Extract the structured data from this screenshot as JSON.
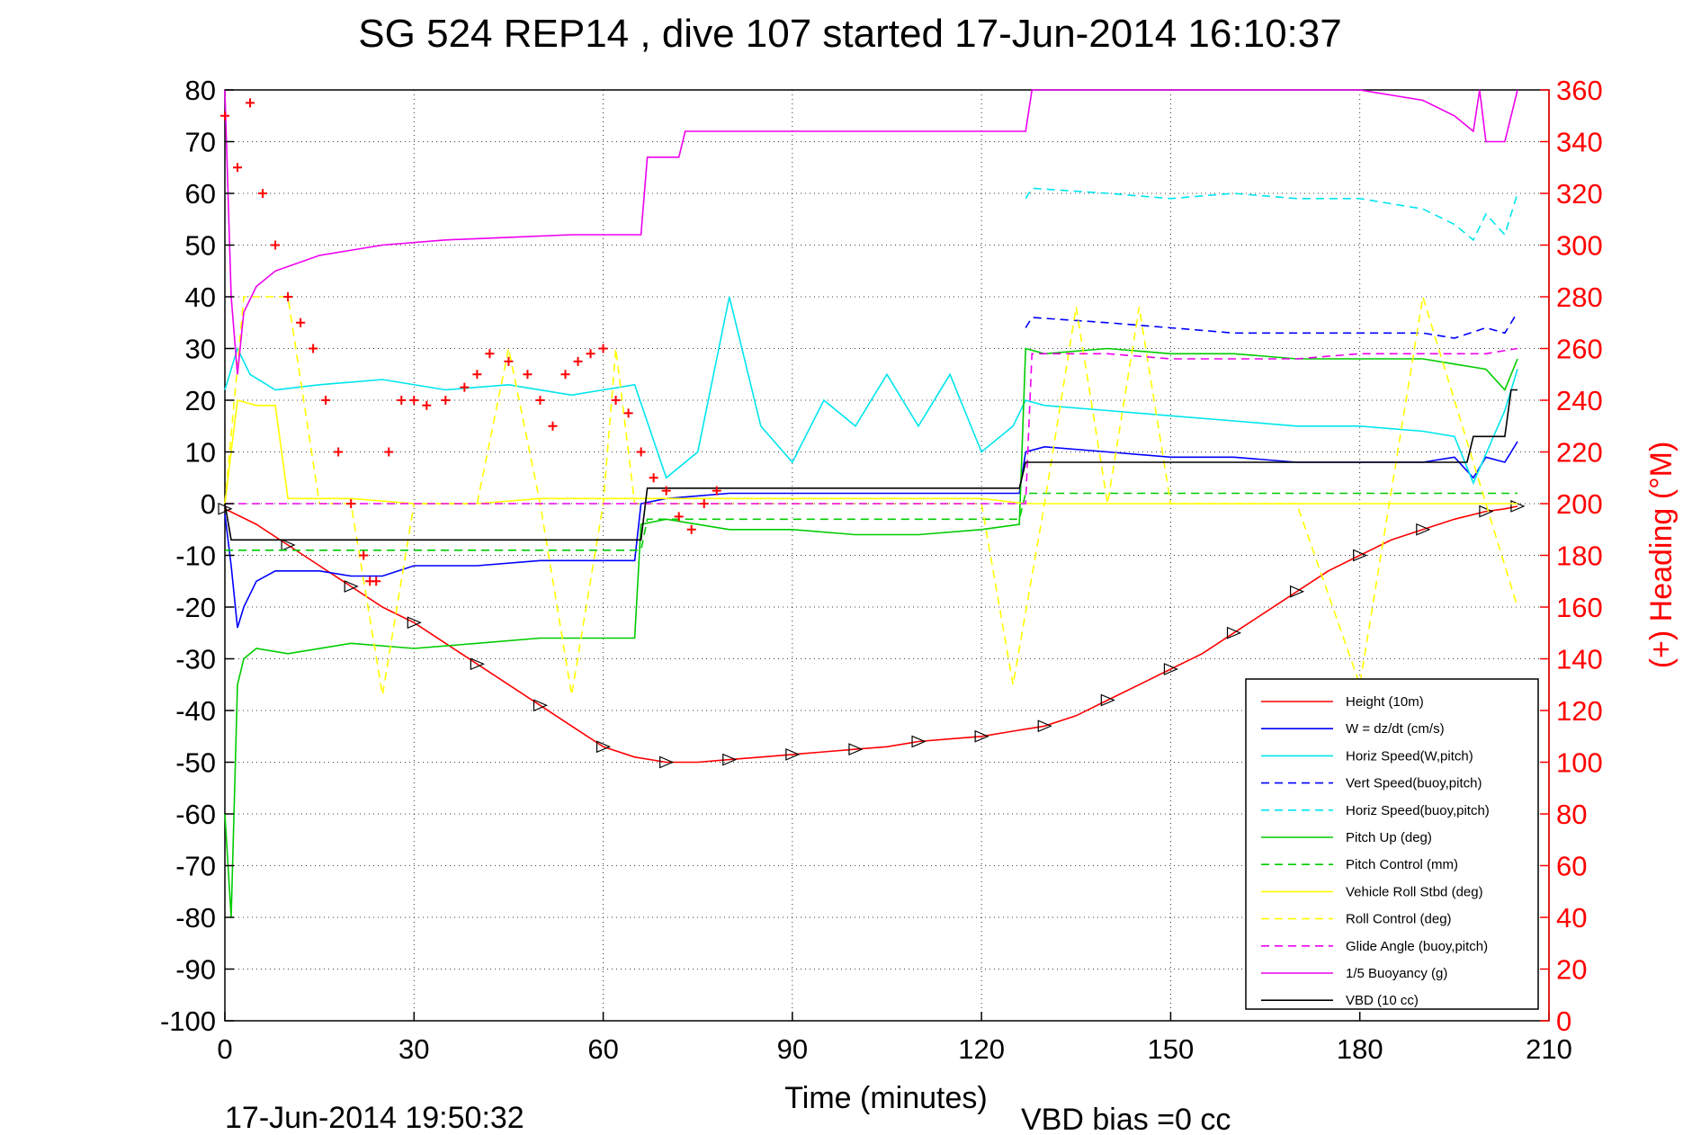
{
  "title": "SG 524   REP14  , dive 107 started 17-Jun-2014 16:10:37",
  "footer_date": "17-Jun-2014 19:50:32",
  "footer_vbd": "VBD bias =0 cc",
  "chart_data": {
    "type": "line",
    "title": "SG 524   REP14  , dive 107 started 17-Jun-2014 16:10:37",
    "xlabel": "Time (minutes)",
    "ylabel": "",
    "ylabel_right": "(+) Heading (°M)",
    "xlim": [
      0,
      210
    ],
    "ylim": [
      -100,
      80
    ],
    "ylim_right": [
      0,
      360
    ],
    "grid": true,
    "legend_position": "bottom-right",
    "x_ticks": [
      "0",
      "30",
      "60",
      "90",
      "120",
      "150",
      "180",
      "210"
    ],
    "y_ticks": [
      "80",
      "70",
      "60",
      "50",
      "40",
      "30",
      "20",
      "10",
      "0",
      "-10",
      "-20",
      "-30",
      "-40",
      "-50",
      "-60",
      "-70",
      "-80",
      "-90",
      "-100"
    ],
    "y_right_ticks": [
      "360",
      "340",
      "320",
      "300",
      "280",
      "260",
      "240",
      "220",
      "200",
      "180",
      "160",
      "140",
      "120",
      "100",
      "80",
      "60",
      "40",
      "20",
      "0"
    ],
    "series": [
      {
        "name": "Height (10m)",
        "color": "#ff0000",
        "dash": "solid",
        "x": [
          0,
          5,
          10,
          15,
          20,
          25,
          30,
          35,
          40,
          45,
          50,
          55,
          60,
          65,
          70,
          75,
          80,
          85,
          90,
          95,
          100,
          105,
          110,
          115,
          120,
          125,
          130,
          135,
          140,
          145,
          150,
          155,
          160,
          165,
          170,
          175,
          180,
          185,
          190,
          195,
          200,
          203,
          205
        ],
        "y": [
          -1,
          -4,
          -8,
          -12,
          -16,
          -20,
          -23,
          -27,
          -31,
          -35,
          -39,
          -43,
          -47,
          -49,
          -50,
          -50,
          -49.5,
          -49,
          -48.5,
          -48,
          -47.5,
          -47,
          -46,
          -45.5,
          -45,
          -44,
          -43,
          -41,
          -38,
          -35,
          -32,
          -29,
          -25,
          -21,
          -17,
          -13,
          -10,
          -7,
          -5,
          -3,
          -1.5,
          -1,
          -0.5
        ]
      },
      {
        "name": "W = dz/dt (cm/s)",
        "color": "#0000ff",
        "dash": "solid",
        "x": [
          0,
          1,
          2,
          3,
          5,
          8,
          15,
          20,
          25,
          30,
          40,
          50,
          55,
          60,
          65,
          66,
          70,
          80,
          90,
          100,
          110,
          120,
          126,
          127,
          130,
          140,
          150,
          160,
          170,
          180,
          190,
          195,
          198,
          200,
          203,
          205
        ],
        "y": [
          -2,
          -12,
          -24,
          -20,
          -15,
          -13,
          -13,
          -14,
          -14,
          -12,
          -12,
          -11,
          -11,
          -11,
          -11,
          0,
          1,
          2,
          2,
          2,
          2,
          2,
          2,
          10,
          11,
          10,
          9,
          9,
          8,
          8,
          8,
          9,
          5,
          9,
          8,
          12
        ]
      },
      {
        "name": "Horiz Speed(W,pitch)",
        "color": "#00e5ee",
        "dash": "solid",
        "x": [
          0,
          2,
          4,
          8,
          15,
          25,
          35,
          45,
          55,
          60,
          65,
          70,
          75,
          80,
          85,
          90,
          95,
          100,
          105,
          110,
          115,
          120,
          125,
          127,
          130,
          140,
          150,
          160,
          170,
          180,
          190,
          195,
          198,
          203,
          205
        ],
        "y": [
          22,
          30,
          25,
          22,
          23,
          24,
          22,
          23,
          21,
          22,
          23,
          5,
          10,
          40,
          15,
          8,
          20,
          15,
          25,
          15,
          25,
          10,
          15,
          20,
          19,
          18,
          17,
          16,
          15,
          15,
          14,
          13,
          4,
          18,
          26
        ]
      },
      {
        "name": "Vert Speed(buoy,pitch)",
        "color": "#0000ff",
        "dash": "dashed",
        "x": [
          127,
          128,
          140,
          150,
          160,
          170,
          180,
          190,
          195,
          200,
          203,
          205
        ],
        "y": [
          34,
          36,
          35,
          34,
          33,
          33,
          33,
          33,
          32,
          34,
          33,
          37
        ]
      },
      {
        "name": "Horiz Speed(buoy,pitch)",
        "color": "#00e5ee",
        "dash": "dashed",
        "x": [
          127,
          128,
          140,
          150,
          160,
          170,
          180,
          190,
          195,
          198,
          200,
          203,
          205
        ],
        "y": [
          59,
          61,
          60,
          59,
          60,
          59,
          59,
          57,
          54,
          51,
          56,
          52,
          60
        ]
      },
      {
        "name": "Pitch Up (deg)",
        "color": "#00cc00",
        "dash": "solid",
        "x": [
          0,
          1,
          2,
          3,
          5,
          10,
          20,
          30,
          40,
          50,
          60,
          65,
          66,
          70,
          80,
          90,
          100,
          110,
          120,
          126,
          127,
          130,
          140,
          150,
          160,
          170,
          180,
          190,
          195,
          200,
          203,
          205
        ],
        "y": [
          -60,
          -80,
          -35,
          -30,
          -28,
          -29,
          -27,
          -28,
          -27,
          -26,
          -26,
          -26,
          -4,
          -3,
          -5,
          -5,
          -6,
          -6,
          -5,
          -4,
          30,
          29,
          30,
          29,
          29,
          28,
          28,
          28,
          27,
          26,
          22,
          28
        ]
      },
      {
        "name": "Pitch Control (mm)",
        "color": "#00cc00",
        "dash": "dashed",
        "x": [
          0,
          66,
          67,
          126,
          127,
          205
        ],
        "y": [
          -9,
          -9,
          -3,
          -3,
          2,
          2
        ]
      },
      {
        "name": "Vehicle Roll Stbd (deg)",
        "color": "#ffff00",
        "dash": "solid",
        "x": [
          0,
          2,
          5,
          8,
          10,
          20,
          30,
          40,
          50,
          60,
          70,
          80,
          90,
          100,
          110,
          120,
          127,
          130,
          140,
          150,
          160,
          170,
          180,
          190,
          200,
          205
        ],
        "y": [
          0,
          20,
          19,
          19,
          1,
          1,
          0,
          0,
          1,
          1,
          1,
          1,
          1,
          1,
          1,
          1,
          0,
          0,
          0,
          0,
          0,
          0,
          0,
          0,
          0,
          0
        ]
      },
      {
        "name": "Roll Control (deg)",
        "color": "#ffff00",
        "dash": "dashed",
        "x": [
          0,
          3,
          10,
          15,
          20,
          25,
          30,
          35,
          40,
          45,
          50,
          55,
          60,
          62,
          65,
          70,
          80,
          90,
          100,
          110,
          120,
          125,
          130,
          135,
          140,
          145,
          150,
          160,
          170,
          180,
          190,
          200,
          205
        ],
        "y": [
          0,
          40,
          40,
          0,
          0,
          -37,
          0,
          0,
          0,
          30,
          0,
          -37,
          0,
          30,
          0,
          0,
          0,
          0,
          0,
          0,
          0,
          -35,
          0,
          38,
          0,
          38,
          0,
          0,
          0,
          -35,
          40,
          0,
          -20
        ]
      },
      {
        "name": "Glide Angle (buoy,pitch)",
        "color": "#ee00ee",
        "dash": "dashed",
        "x": [
          0,
          127,
          128,
          140,
          150,
          160,
          170,
          180,
          190,
          200,
          205
        ],
        "y": [
          0,
          0,
          29,
          29,
          28,
          28,
          28,
          29,
          29,
          29,
          30
        ]
      },
      {
        "name": "1/5 Buoyancy (g)",
        "color": "#ee00ee",
        "dash": "solid",
        "x": [
          0,
          1,
          2,
          3,
          5,
          8,
          15,
          25,
          35,
          45,
          55,
          60,
          66,
          67,
          72,
          73,
          80,
          90,
          100,
          110,
          120,
          127,
          128,
          140,
          150,
          160,
          170,
          180,
          190,
          195,
          198,
          199,
          200,
          203,
          205
        ],
        "y": [
          80,
          40,
          25,
          37,
          42,
          45,
          48,
          50,
          51,
          51.5,
          52,
          52,
          52,
          67,
          67,
          72,
          72,
          72,
          72,
          72,
          72,
          72,
          80,
          80,
          80,
          80,
          80,
          80,
          78,
          75,
          72,
          80,
          70,
          70,
          80
        ]
      },
      {
        "name": "VBD (10 cc)",
        "color": "#000000",
        "dash": "solid",
        "x": [
          0,
          1,
          2,
          66,
          67,
          126,
          127,
          180,
          190,
          197,
          198,
          203,
          204,
          205
        ],
        "y": [
          0,
          -7,
          -7,
          -7,
          3,
          3,
          8,
          8,
          8,
          8,
          13,
          13,
          22,
          22
        ]
      },
      {
        "name": "Heading",
        "color": "#ff0000",
        "dash": "markers",
        "axis": "right",
        "x": [
          0,
          2,
          4,
          6,
          8,
          10,
          12,
          14,
          16,
          18,
          20,
          22,
          23,
          24,
          26,
          28,
          30,
          32,
          35,
          38,
          40,
          42,
          45,
          48,
          50,
          52,
          54,
          56,
          58,
          60,
          62,
          64,
          66,
          68,
          70,
          72,
          74,
          76,
          78
        ],
        "y": [
          350,
          330,
          355,
          320,
          300,
          280,
          270,
          260,
          240,
          220,
          200,
          180,
          170,
          170,
          220,
          240,
          240,
          238,
          240,
          245,
          250,
          258,
          255,
          250,
          240,
          230,
          250,
          255,
          258,
          260,
          240,
          235,
          220,
          210,
          205,
          195,
          190,
          200,
          205
        ]
      }
    ]
  }
}
